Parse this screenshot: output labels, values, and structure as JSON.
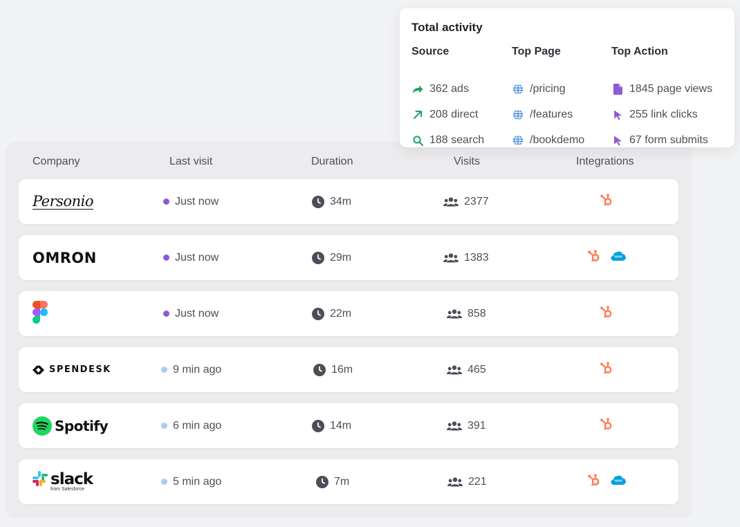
{
  "activity": {
    "title": "Total activity",
    "columns": [
      {
        "header": "Source",
        "items": [
          {
            "icon": "share-arrow-icon",
            "text": "362 ads"
          },
          {
            "icon": "arrow-up-right-icon",
            "text": "208 direct"
          },
          {
            "icon": "search-icon",
            "text": "188 search"
          }
        ]
      },
      {
        "header": "Top Page",
        "items": [
          {
            "icon": "globe-icon",
            "text": "/pricing"
          },
          {
            "icon": "globe-icon",
            "text": "/features"
          },
          {
            "icon": "globe-icon",
            "text": "/bookdemo"
          }
        ]
      },
      {
        "header": "Top Action",
        "items": [
          {
            "icon": "document-icon",
            "text": "1845 page views"
          },
          {
            "icon": "cursor-icon",
            "text": "255 link clicks"
          },
          {
            "icon": "cursor-icon",
            "text": "67 form submits"
          }
        ]
      }
    ],
    "colors": {
      "source": "#1aa760",
      "page": "#4a90e2",
      "action": "#8b5bd6"
    }
  },
  "table": {
    "headers": {
      "company": "Company",
      "last_visit": "Last visit",
      "duration": "Duration",
      "visits": "Visits",
      "integrations": "Integrations"
    },
    "rows": [
      {
        "company": "Personio",
        "last_visit": "Just now",
        "status": "active",
        "duration": "34m",
        "visits": "2377",
        "integrations": [
          "hubspot"
        ]
      },
      {
        "company": "OMRON",
        "last_visit": "Just now",
        "status": "active",
        "duration": "29m",
        "visits": "1383",
        "integrations": [
          "hubspot",
          "salesforce"
        ]
      },
      {
        "company": "Figma",
        "last_visit": "Just now",
        "status": "active",
        "duration": "22m",
        "visits": "858",
        "integrations": [
          "hubspot"
        ]
      },
      {
        "company": "SPENDESK",
        "last_visit": "9 min ago",
        "status": "recent",
        "duration": "16m",
        "visits": "465",
        "integrations": [
          "hubspot"
        ]
      },
      {
        "company": "Spotify",
        "last_visit": "6 min ago",
        "status": "recent",
        "duration": "14m",
        "visits": "391",
        "integrations": [
          "hubspot"
        ]
      },
      {
        "company": "slack",
        "company_sub": "from Salesforce",
        "last_visit": "5 min ago",
        "status": "recent",
        "duration": "7m",
        "visits": "221",
        "integrations": [
          "hubspot",
          "salesforce"
        ]
      }
    ],
    "colors": {
      "active_dot": "#8b5bd6",
      "recent_dot": "#a9cdf5",
      "hubspot": "#ff7a59",
      "salesforce": "#00a1e0",
      "icon": "#4a4f57"
    }
  }
}
